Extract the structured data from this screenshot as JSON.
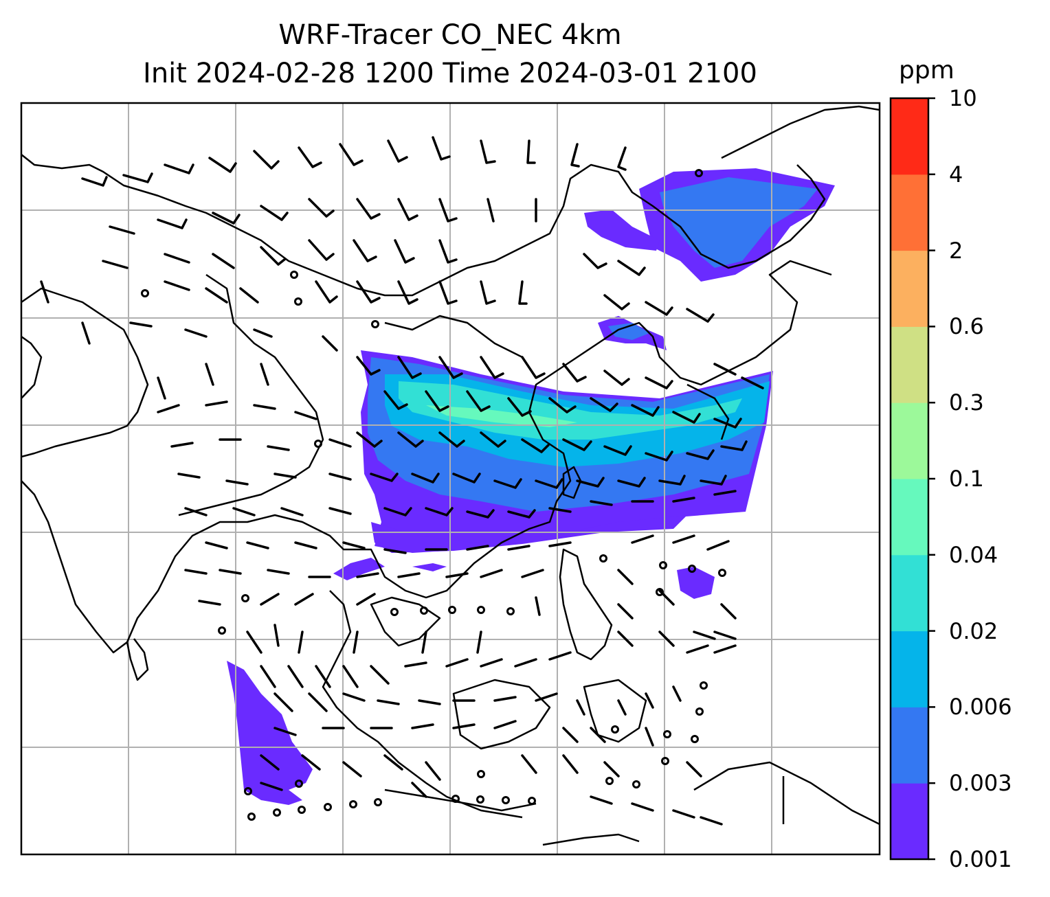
{
  "title": {
    "line1": "WRF-Tracer CO_NEC 4km",
    "line2": "Init 2024-02-28 1200 Time 2024-03-01 2100"
  },
  "colorbar": {
    "unit": "ppm",
    "levels": [
      "0.001",
      "0.003",
      "0.006",
      "0.02",
      "0.04",
      "0.1",
      "0.3",
      "0.6",
      "2",
      "4",
      "10"
    ],
    "colors": [
      "#6a2bff",
      "#3478f2",
      "#05b4ea",
      "#32e0d5",
      "#66f9bd",
      "#9cf99a",
      "#cfe084",
      "#fcb05f",
      "#ff7036",
      "#ff2a17"
    ]
  },
  "map": {
    "projection": "lat-lon",
    "gridlines": true,
    "layers": [
      "coastlines",
      "country-borders",
      "tracer-concentration",
      "wind-barbs"
    ]
  }
}
